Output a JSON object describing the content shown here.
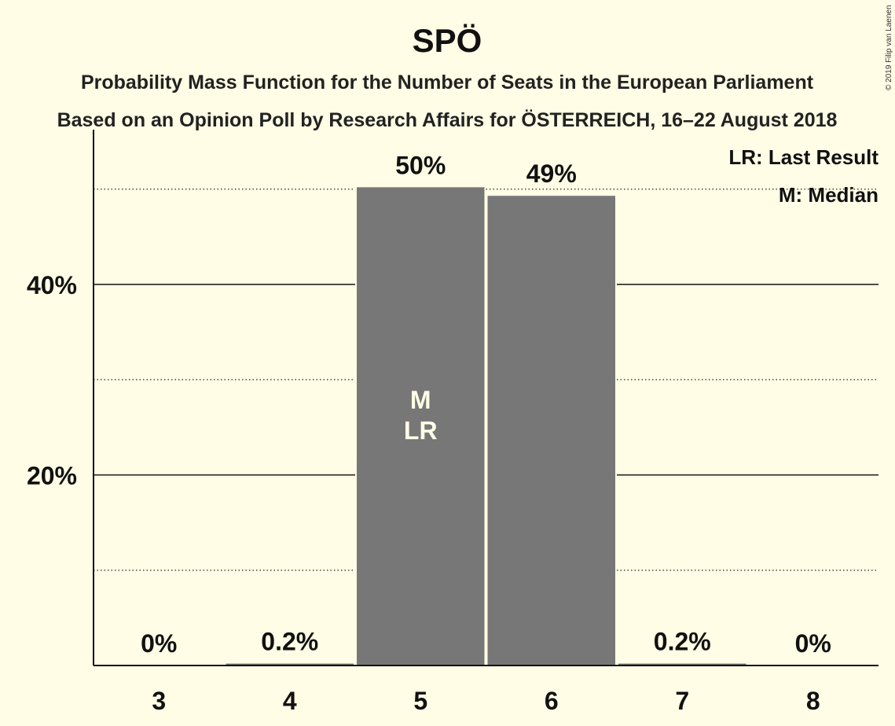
{
  "chart_data": {
    "type": "bar",
    "title": "SPÖ",
    "subtitle_line1": "Probability Mass Function for the Number of Seats in the European Parliament",
    "subtitle_line2": "Based on an Opinion Poll by Research Affairs for ÖSTERREICH, 16–22 August 2018",
    "categories": [
      "3",
      "4",
      "5",
      "6",
      "7",
      "8"
    ],
    "values": [
      0,
      0.2,
      50.2,
      49.3,
      0.2,
      0
    ],
    "value_labels": [
      "0%",
      "0.2%",
      "50%",
      "49%",
      "0.2%",
      "0%"
    ],
    "bar_marks": {
      "5": [
        "M",
        "LR"
      ]
    },
    "ylim": [
      0,
      55
    ],
    "y_ticks": [
      {
        "value": 20,
        "label": "20%"
      },
      {
        "value": 40,
        "label": "40%"
      }
    ],
    "minor_grid": [
      10,
      30,
      50
    ],
    "xlabel": "",
    "ylabel": "",
    "legend": [
      "LR: Last Result",
      "M: Median"
    ],
    "legend_position": "top-right",
    "bar_color": "#777777",
    "background": "#fffde5",
    "copyright": "© 2019 Filip van Laenen"
  }
}
